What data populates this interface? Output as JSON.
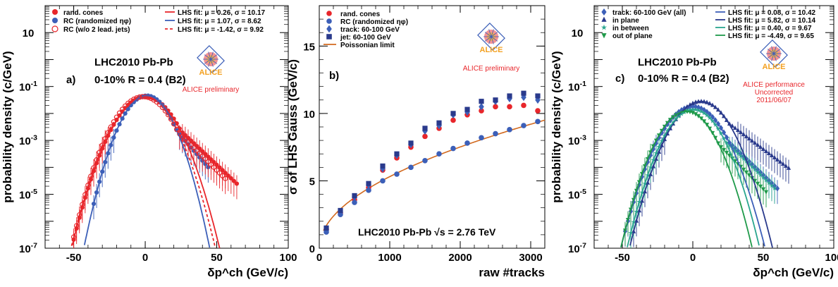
{
  "chart_data": [
    {
      "type": "scatter",
      "panel_label": "a)",
      "ylabel": "probability density (c/GeV)",
      "xlabel": "δp^ch (GeV/c)",
      "xlim": [
        -70,
        100
      ],
      "ylim_log": [
        -7,
        2
      ],
      "y_scale": "log",
      "x_ticks": [
        -50,
        0,
        50,
        100
      ],
      "y_ticks": [
        "10",
        "10^-1",
        "10^-3",
        "10^-5",
        "10^-7"
      ],
      "texts": [
        "LHC2010 Pb-Pb",
        "0-10% R = 0.4 (B2)"
      ],
      "logo": {
        "label": "ALICE",
        "caption": "ALICE preliminary"
      },
      "legend": {
        "placement": "top",
        "entries": [
          {
            "label": "rand. cones",
            "color": "#e8262b",
            "marker": "circle-filled"
          },
          {
            "label": "RC (randomized ηφ)",
            "color": "#3c5fb8",
            "marker": "circle-filled"
          },
          {
            "label": "RC (w/o 2 lead. jets)",
            "color": "#e8262b",
            "marker": "circle-open"
          },
          {
            "label": "LHS fit: μ = 0.26, σ = 10.17",
            "color": "#e8262b",
            "line": "solid"
          },
          {
            "label": "LHS fit: μ = 1.07, σ = 8.62",
            "color": "#3c5fb8",
            "line": "solid"
          },
          {
            "label": "LHS fit: μ = -1.42, σ = 9.92",
            "color": "#e8262b",
            "line": "dashed"
          }
        ]
      },
      "series": [
        {
          "name": "rand. cones",
          "color": "#e8262b",
          "marker": "circle-filled",
          "mu": 0.26,
          "sigma": 10.17,
          "slope": 0.115,
          "amp": 0.042,
          "xmin": -56,
          "xmax": 64
        },
        {
          "name": "RC (randomized ηφ)",
          "color": "#3c5fb8",
          "marker": "circle-filled",
          "mu": 1.07,
          "sigma": 8.62,
          "slope": 0.14,
          "amp": 0.046,
          "xmin": -36,
          "xmax": 44
        },
        {
          "name": "RC (w/o 2 lead. jets)",
          "color": "#e8262b",
          "marker": "circle-open",
          "mu": -1.42,
          "sigma": 9.92,
          "slope": 0.12,
          "amp": 0.042,
          "xmin": -64,
          "xmax": 56
        }
      ],
      "fits": [
        {
          "color": "#e8262b",
          "dash": "",
          "mu": 0.26,
          "sigma": 10.17,
          "amp": 0.042
        },
        {
          "color": "#3c5fb8",
          "dash": "",
          "mu": 1.07,
          "sigma": 8.62,
          "amp": 0.046
        },
        {
          "color": "#e8262b",
          "dash": "4,3",
          "mu": -1.42,
          "sigma": 9.92,
          "amp": 0.042
        }
      ]
    },
    {
      "type": "scatter",
      "panel_label": "b)",
      "ylabel": "σ of LHS Gauss (GeV/c)",
      "xlabel": "raw #tracks",
      "xlim": [
        0,
        3200
      ],
      "ylim": [
        0,
        18
      ],
      "x_ticks": [
        0,
        1000,
        2000,
        3000
      ],
      "y_ticks": [
        0,
        5,
        10,
        15
      ],
      "texts": [
        "LHC2010 Pb-Pb √s = 2.76 TeV"
      ],
      "logo": {
        "label": "ALICE",
        "caption": "ALICE preliminary"
      },
      "legend": {
        "placement": "top-left",
        "entries": [
          {
            "label": "rand. cones",
            "color": "#e8262b",
            "marker": "circle-filled"
          },
          {
            "label": "RC (randomized ηφ)",
            "color": "#3c5fb8",
            "marker": "circle-filled"
          },
          {
            "label": "track: 60-100 GeV",
            "color": "#3c5fb8",
            "marker": "diamond"
          },
          {
            "label": "jet: 60-100 GeV",
            "color": "#2a3a8c",
            "marker": "square"
          },
          {
            "label": "Poissonian limit",
            "color": "#d2691e",
            "line": "solid"
          }
        ]
      },
      "x": [
        100,
        300,
        500,
        700,
        900,
        1100,
        1300,
        1500,
        1700,
        1900,
        2100,
        2300,
        2500,
        2700,
        2900,
        3100
      ],
      "series": [
        {
          "name": "rand. cones",
          "color": "#e8262b",
          "marker": "circle-filled",
          "values": [
            1.4,
            2.6,
            3.6,
            4.5,
            5.8,
            6.7,
            7.5,
            8.3,
            8.9,
            9.5,
            9.9,
            10.2,
            10.5,
            10.5,
            10.6,
            10.2
          ]
        },
        {
          "name": "RC (randomized ηφ)",
          "color": "#3c5fb8",
          "marker": "circle-filled",
          "values": [
            1.2,
            2.5,
            3.4,
            4.3,
            5.0,
            5.5,
            6.0,
            6.5,
            7.0,
            7.4,
            7.8,
            8.2,
            8.5,
            8.8,
            9.1,
            9.4
          ]
        },
        {
          "name": "track: 60-100 GeV",
          "color": "#3c5fb8",
          "marker": "diamond",
          "values": [
            1.3,
            2.7,
            3.8,
            4.7,
            5.9,
            6.9,
            7.7,
            8.7,
            9.1,
            9.9,
            10.1,
            10.5,
            10.9,
            11.1,
            11.2,
            11.0
          ]
        },
        {
          "name": "jet: 60-100 GeV",
          "color": "#2a3a8c",
          "marker": "square",
          "values": [
            1.5,
            2.8,
            3.9,
            4.8,
            6.1,
            7.0,
            7.8,
            8.9,
            9.3,
            10.0,
            10.3,
            10.9,
            11.0,
            11.3,
            11.5,
            11.3
          ]
        }
      ],
      "poisson": {
        "name": "Poissonian limit",
        "color": "#d2691e",
        "coef": 0.168
      }
    },
    {
      "type": "scatter",
      "panel_label": "c)",
      "ylabel": "probability density (c/GeV)",
      "xlabel": "δp^ch (GeV/c)",
      "xlim": [
        -70,
        100
      ],
      "ylim_log": [
        -7,
        2
      ],
      "y_scale": "log",
      "x_ticks": [
        -50,
        0,
        50,
        100
      ],
      "y_ticks": [
        "10",
        "10^-1",
        "10^-3",
        "10^-5",
        "10^-7"
      ],
      "texts": [
        "LHC2010 Pb-Pb",
        "0-10% R = 0.4 (B2)"
      ],
      "logo": {
        "label": "ALICE",
        "caption_lines": [
          "ALICE performance",
          "Uncorrected",
          "2011/06/07"
        ]
      },
      "legend": {
        "placement": "top",
        "entries": [
          {
            "label": "track: 60-100 GeV (all)",
            "color": "#3c5fb8",
            "marker": "diamond"
          },
          {
            "label": "in plane",
            "color": "#2a3a8c",
            "marker": "triangle-up"
          },
          {
            "label": "in between",
            "color": "#2aa68f",
            "marker": "star"
          },
          {
            "label": "out of plane",
            "color": "#1f9a4a",
            "marker": "triangle-down"
          },
          {
            "label": "LHS fit: μ = 0.08, σ = 10.42",
            "color": "#3c5fb8",
            "line": "solid"
          },
          {
            "label": "LHS fit: μ = 5.82, σ = 10.14",
            "color": "#2a3a8c",
            "line": "solid"
          },
          {
            "label": "LHS fit: μ = 0.40, σ = 9.67",
            "color": "#2aa68f",
            "line": "solid"
          },
          {
            "label": "LHS fit: μ = -4.49, σ = 9.65",
            "color": "#1f9a4a",
            "line": "solid"
          }
        ]
      },
      "series": [
        {
          "name": "track: 60-100 GeV (all)",
          "color": "#3c5fb8",
          "marker": "diamond",
          "mu": 0.08,
          "sigma": 10.42,
          "slope": 0.115,
          "amp": 0.018,
          "xmin": -48,
          "xmax": 60
        },
        {
          "name": "in plane",
          "color": "#2a3a8c",
          "marker": "triangle-up",
          "mu": 5.82,
          "sigma": 10.14,
          "slope": 0.09,
          "amp": 0.028,
          "xmin": -44,
          "xmax": 68
        },
        {
          "name": "in between",
          "color": "#2aa68f",
          "marker": "star",
          "mu": 0.4,
          "sigma": 9.67,
          "slope": 0.115,
          "amp": 0.014,
          "xmin": -46,
          "xmax": 58
        },
        {
          "name": "out of plane",
          "color": "#1f9a4a",
          "marker": "triangle-down",
          "mu": -4.49,
          "sigma": 9.65,
          "slope": 0.12,
          "amp": 0.012,
          "xmin": -50,
          "xmax": 52
        }
      ],
      "fits": [
        {
          "color": "#3c5fb8",
          "dash": "",
          "mu": 0.08,
          "sigma": 10.42,
          "amp": 0.018
        },
        {
          "color": "#2a3a8c",
          "dash": "",
          "mu": 5.82,
          "sigma": 10.14,
          "amp": 0.028
        },
        {
          "color": "#2aa68f",
          "dash": "",
          "mu": 0.4,
          "sigma": 9.67,
          "amp": 0.014
        },
        {
          "color": "#1f9a4a",
          "dash": "",
          "mu": -4.49,
          "sigma": 9.65,
          "amp": 0.012
        }
      ]
    }
  ]
}
